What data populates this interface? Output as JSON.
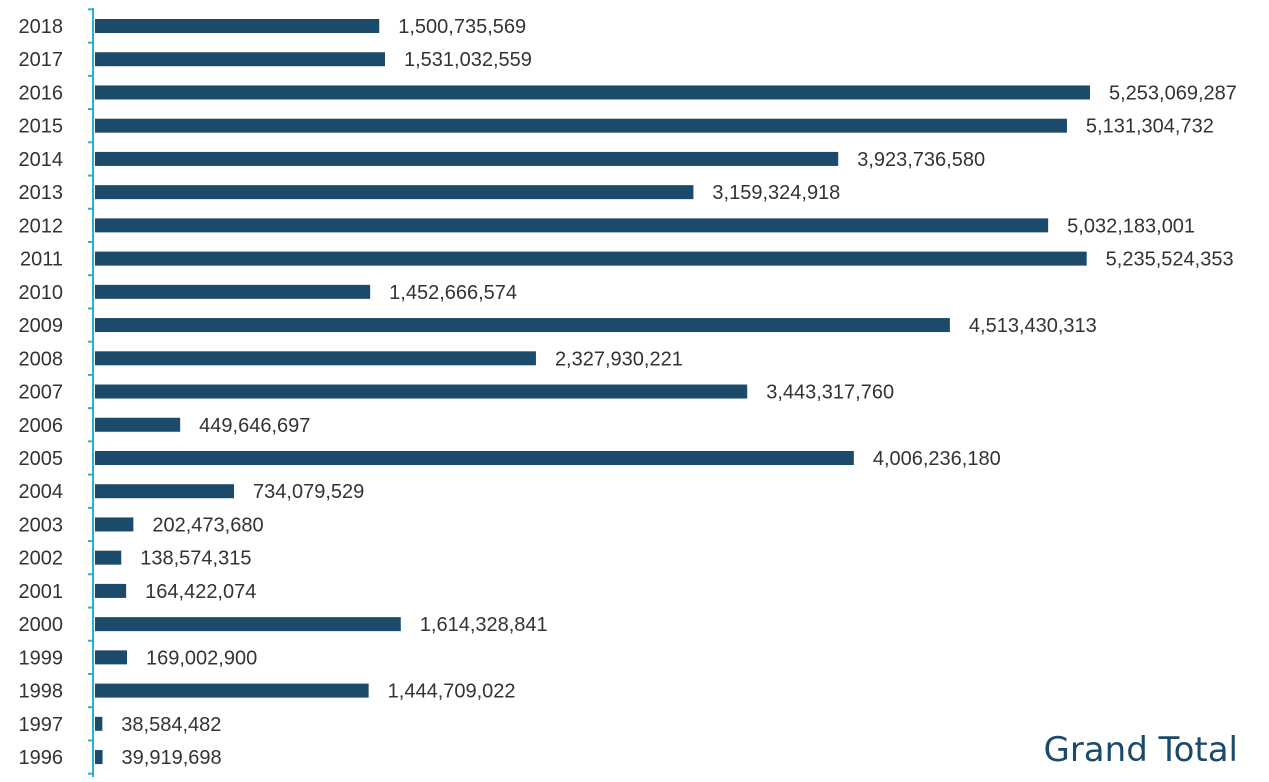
{
  "chart_data": {
    "type": "bar",
    "orientation": "horizontal",
    "categories": [
      "2018",
      "2017",
      "2016",
      "2015",
      "2014",
      "2013",
      "2012",
      "2011",
      "2010",
      "2009",
      "2008",
      "2007",
      "2006",
      "2005",
      "2004",
      "2003",
      "2002",
      "2001",
      "2000",
      "1999",
      "1998",
      "1997",
      "1996"
    ],
    "values": [
      1500735569,
      1531032559,
      5253069287,
      5131304732,
      3923736580,
      3159324918,
      5032183001,
      5235524353,
      1452666574,
      4513430313,
      2327930221,
      3443317760,
      449646697,
      4006236180,
      734079529,
      202473680,
      138574315,
      164422074,
      1614328841,
      169002900,
      1444709022,
      38584482,
      39919698
    ],
    "value_labels": [
      "1,500,735,569",
      "1,531,032,559",
      "5,253,069,287",
      "5,131,304,732",
      "3,923,736,580",
      "3,159,324,918",
      "5,032,183,001",
      "5,235,524,353",
      "1,452,666,574",
      "4,513,430,313",
      "2,327,930,221",
      "3,443,317,760",
      "449,646,697",
      "4,006,236,180",
      "734,079,529",
      "202,473,680",
      "138,574,315",
      "164,422,074",
      "1,614,328,841",
      "169,002,900",
      "1,444,709,022",
      "38,584,482",
      "39,919,698"
    ],
    "xlim": [
      0,
      5253069287
    ],
    "grid": false,
    "bar_color": "#1b4a6b",
    "axis_color": "#29b0d6",
    "legend_title": "Grand Total"
  }
}
